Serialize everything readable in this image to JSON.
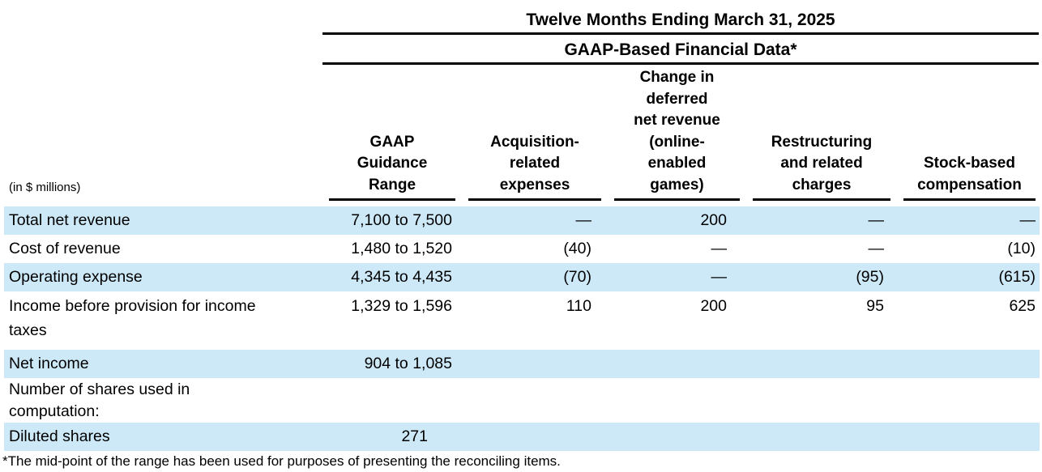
{
  "header": {
    "period_title": "Twelve Months Ending March 31, 2025",
    "dataset_title": "GAAP-Based Financial Data*"
  },
  "table": {
    "unit_note": "(in $ millions)",
    "columns": [
      {
        "label": "GAAP\nGuidance\nRange"
      },
      {
        "label": "Acquisition-\nrelated\nexpenses"
      },
      {
        "label": "Change in\ndeferred\nnet revenue\n(online-\nenabled\ngames)"
      },
      {
        "label": "Restructuring\nand related\ncharges"
      },
      {
        "label": "Stock-based\ncompensation"
      }
    ],
    "rows": [
      {
        "label": "Total net revenue",
        "values": [
          "7,100 to 7,500",
          "—",
          "200",
          "—",
          "—"
        ]
      },
      {
        "label": "Cost of revenue",
        "values": [
          "1,480 to 1,520",
          "(40)",
          "—",
          "—",
          "(10)"
        ]
      },
      {
        "label": "Operating expense",
        "values": [
          "4,345 to 4,435",
          "(70)",
          "—",
          "(95)",
          "(615)"
        ]
      },
      {
        "label": "Income before provision for income\ntaxes",
        "values": [
          "1,329 to 1,596",
          "110",
          "200",
          "95",
          "625"
        ]
      },
      {
        "label": "Net income",
        "values": [
          "904 to 1,085",
          "",
          "",
          "",
          ""
        ]
      },
      {
        "label": "Number of shares used in\ncomputation:",
        "values": [
          "",
          "",
          "",
          "",
          ""
        ]
      },
      {
        "label": "Diluted shares",
        "values": [
          "271",
          "",
          "",
          "",
          ""
        ]
      }
    ]
  },
  "footnote": "*The mid-point of the range has been used for purposes of presenting the reconciling items.",
  "colors": {
    "stripe_blue": "#cde9f8",
    "text": "#000000",
    "rule": "#000000"
  }
}
